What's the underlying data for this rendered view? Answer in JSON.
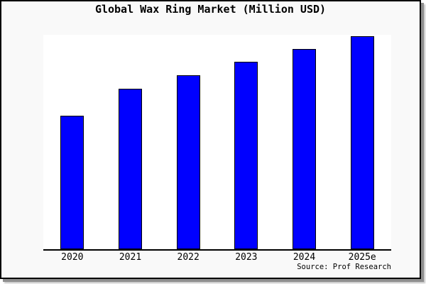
{
  "title": "Global Wax Ring Market (Million USD)",
  "source_credit": "Source: Prof Research",
  "colors": {
    "bar_fill": "#0000ff",
    "bar_border": "#000000",
    "card_background": "#f9f9f9",
    "plot_background": "#ffffff",
    "axis_line": "#000000",
    "text": "#000000"
  },
  "chart_data": {
    "type": "bar",
    "title": "Global Wax Ring Market (Million USD)",
    "unit": "Million USD",
    "categories": [
      "2020",
      "2021",
      "2022",
      "2023",
      "2024",
      "2025e"
    ],
    "values_relative": [
      62.7,
      75.3,
      81.7,
      88.0,
      94.0,
      100.0
    ],
    "value_scale_note": "no y-axis tick labels printed on chart; values are bar heights normalized to 2025e = 100",
    "xlabel": "",
    "ylabel": "",
    "y_axis_shown": false,
    "gridlines": false,
    "legend": false,
    "bar_color": "#0000ff",
    "source": "Prof Research"
  }
}
